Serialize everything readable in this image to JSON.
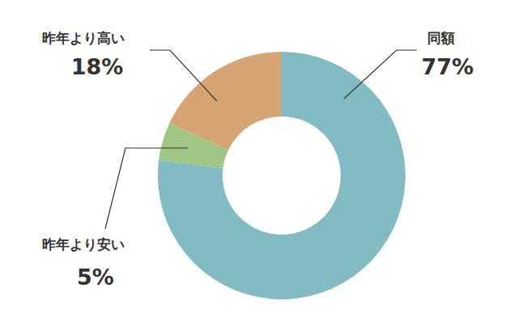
{
  "chart_data": {
    "type": "pie",
    "categories": [
      "同額",
      "昨年より安い",
      "昨年より高い"
    ],
    "values": [
      77,
      5,
      18
    ],
    "value_labels": [
      "77%",
      "5%",
      "18%"
    ],
    "colors": [
      "#82bbc2",
      "#a0c585",
      "#d6a574"
    ],
    "data_labels": true
  }
}
